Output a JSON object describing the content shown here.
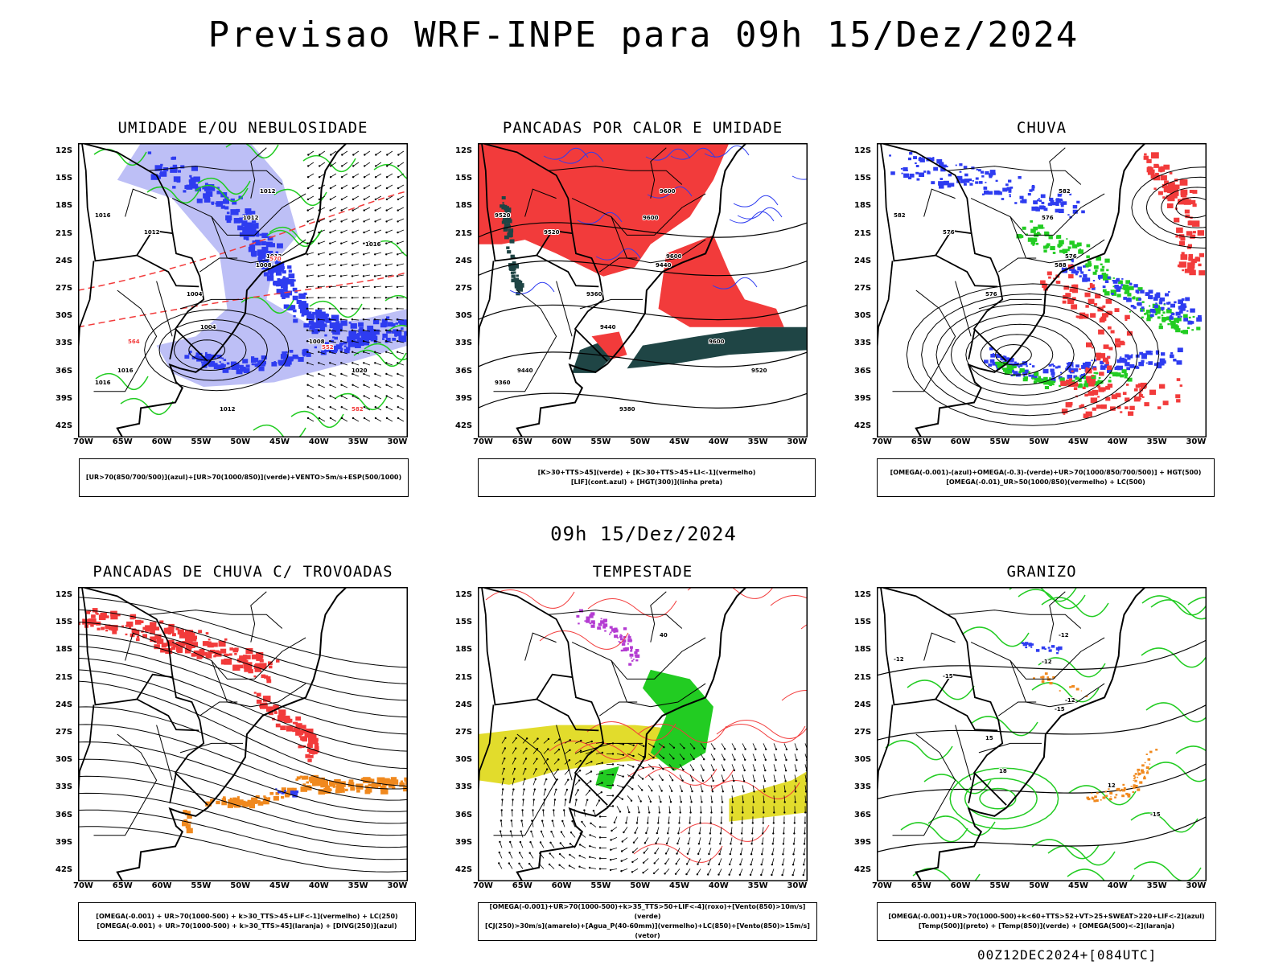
{
  "header": {
    "title": "Previsao WRF-INPE  para 09h 15/Dez/2024"
  },
  "middle": {
    "date": "09h 15/Dez/2024"
  },
  "footer": {
    "stamp": "00Z12DEC2024+[084UTC]"
  },
  "axes": {
    "lat_labels": [
      "12S",
      "15S",
      "18S",
      "21S",
      "24S",
      "27S",
      "30S",
      "33S",
      "36S",
      "39S",
      "42S"
    ],
    "lon_labels": [
      "70W",
      "65W",
      "60W",
      "55W",
      "50W",
      "45W",
      "40W",
      "35W",
      "30W"
    ]
  },
  "colors": {
    "blue": "#2e3cf0",
    "lightblue": "#b2b4f5",
    "green": "#22cc22",
    "red": "#f23b3b",
    "darkgreen": "#1f4545",
    "orange": "#f0891e",
    "yellow": "#e2dc2c",
    "purple": "#b43cd2"
  },
  "panels": [
    {
      "title": "UMIDADE E/OU NEBULOSIDADE",
      "legend": [
        "[UR>70(850/700/500)](azul)+[UR>70(1000/850)](verde)+VENTO>5m/s+ESP(500/1000)"
      ],
      "contour_labels": [
        "1012",
        "1012",
        "1012",
        "1016",
        "1012",
        "1008",
        "1004",
        "1004",
        "1008",
        "1020",
        "1016",
        "1016",
        "1012",
        "1016",
        "570",
        "564",
        "552",
        "582"
      ]
    },
    {
      "title": "PANCADAS POR CALOR E UMIDADE",
      "legend": [
        "[K>30+TTS>45](verde) + [K>30+TTS>45+LI<-1](vermelho)",
        "[LIF](cont.azul) + [HGT(300)](linha preta)"
      ],
      "contour_labels": [
        "9600",
        "9600",
        "9600",
        "9520",
        "9520",
        "9440",
        "9360",
        "9440",
        "9600",
        "9520",
        "9440",
        "9360",
        "9380"
      ]
    },
    {
      "title": "CHUVA",
      "legend": [
        "[OMEGA(-0.001)-(azul)+OMEGA(-0.3)-(verde)+UR>70(1000/850/700/500)] + HGT(500)",
        "[OMEGA(-0.01)_UR>50(1000/850)(vermelho) + LC(500)"
      ],
      "contour_labels": [
        "582",
        "576",
        "576",
        "582",
        "576",
        "588",
        "576"
      ]
    },
    {
      "title": "PANCADAS DE CHUVA C/ TROVOADAS",
      "legend": [
        "[OMEGA(-0.001) + UR>70(1000-500) + k>30_TTS>45+LIF<-1](vermelho) + LC(250)",
        "[OMEGA(-0.001) + UR>70(1000-500) + k>30_TTS>45](laranja) + [DIVG(250)](azul)"
      ],
      "contour_labels": []
    },
    {
      "title": "TEMPESTADE",
      "legend": [
        "[OMEGA(-0.001)+UR>70(1000-500)+k>35_TTS>50+LIF<-4](roxo)+[Vento(850)>10m/s](verde)",
        "[CJ(250)>30m/s](amarelo)+[Agua_P(40-60mm)](vermelho)+LC(850)+[Vento(850)>15m/s](vetor)"
      ],
      "contour_labels": [
        "40"
      ]
    },
    {
      "title": "GRANIZO",
      "legend": [
        "[OMEGA(-0.001)+UR>70(1000-500)+k<60+TTS>52+VT>25+SWEAT>220+LIF<-2](azul)",
        "[Temp(500)](preto) + [Temp(850)](verde) + [OMEGA(500)<-2](laranja)"
      ],
      "contour_labels": [
        "-12",
        "-12",
        "-12",
        "-12",
        "-15",
        "-15",
        "15",
        "18",
        "12",
        "-15"
      ]
    }
  ]
}
